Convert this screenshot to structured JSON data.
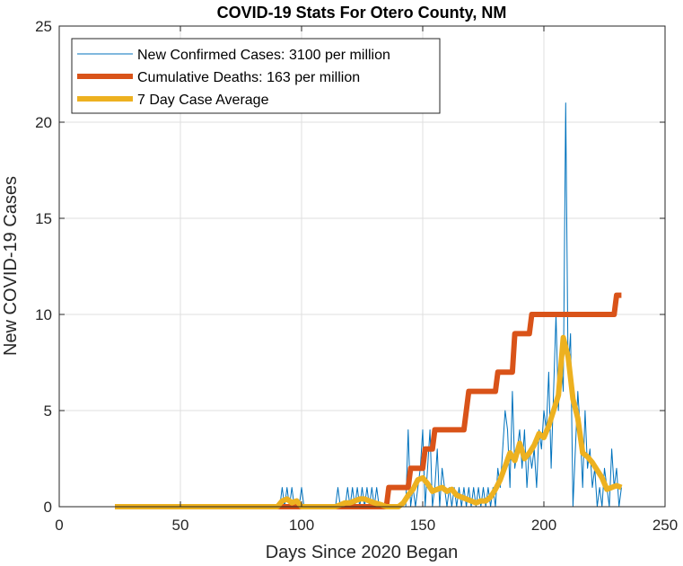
{
  "chart_data": {
    "type": "line",
    "title": "COVID-19 Stats For Otero County, NM",
    "xlabel": "Days Since 2020 Began",
    "ylabel": "New COVID-19 Cases",
    "xlim": [
      0,
      250
    ],
    "ylim": [
      0,
      25
    ],
    "xticks": [
      0,
      50,
      100,
      150,
      200,
      250
    ],
    "yticks": [
      0,
      5,
      10,
      15,
      20,
      25
    ],
    "grid": true,
    "legend_position": "top-left",
    "series": [
      {
        "name": "New Confirmed Cases: 3100 per million",
        "color": "#0072BD",
        "width": "thin",
        "points": [
          [
            23,
            0
          ],
          [
            91,
            0
          ],
          [
            92,
            1
          ],
          [
            93,
            0
          ],
          [
            94,
            1
          ],
          [
            95,
            0
          ],
          [
            96,
            1
          ],
          [
            97,
            0
          ],
          [
            99,
            0
          ],
          [
            100,
            1
          ],
          [
            101,
            0
          ],
          [
            114,
            0
          ],
          [
            115,
            1
          ],
          [
            116,
            0
          ],
          [
            118,
            0
          ],
          [
            119,
            1
          ],
          [
            120,
            0
          ],
          [
            121,
            1
          ],
          [
            122,
            0
          ],
          [
            123,
            1
          ],
          [
            124,
            0
          ],
          [
            125,
            1
          ],
          [
            126,
            0
          ],
          [
            127,
            1
          ],
          [
            128,
            0
          ],
          [
            129,
            1
          ],
          [
            130,
            0
          ],
          [
            131,
            1
          ],
          [
            132,
            0
          ],
          [
            143,
            0
          ],
          [
            144,
            4
          ],
          [
            145,
            0
          ],
          [
            146,
            1
          ],
          [
            147,
            0
          ],
          [
            148,
            1
          ],
          [
            149,
            2
          ],
          [
            150,
            4
          ],
          [
            151,
            0
          ],
          [
            152,
            2
          ],
          [
            153,
            4
          ],
          [
            154,
            0
          ],
          [
            155,
            1
          ],
          [
            156,
            3
          ],
          [
            157,
            0
          ],
          [
            158,
            2
          ],
          [
            159,
            1
          ],
          [
            160,
            0
          ],
          [
            161,
            1
          ],
          [
            162,
            0
          ],
          [
            163,
            1
          ],
          [
            164,
            0
          ],
          [
            165,
            1
          ],
          [
            166,
            0
          ],
          [
            167,
            1
          ],
          [
            168,
            0
          ],
          [
            169,
            1
          ],
          [
            170,
            0
          ],
          [
            171,
            1
          ],
          [
            172,
            0
          ],
          [
            173,
            1
          ],
          [
            174,
            0
          ],
          [
            175,
            1
          ],
          [
            176,
            0
          ],
          [
            177,
            1
          ],
          [
            178,
            0
          ],
          [
            179,
            1
          ],
          [
            180,
            0
          ],
          [
            181,
            2
          ],
          [
            182,
            1
          ],
          [
            183,
            3
          ],
          [
            184,
            5
          ],
          [
            185,
            4
          ],
          [
            186,
            1
          ],
          [
            187,
            6
          ],
          [
            188,
            2
          ],
          [
            189,
            3
          ],
          [
            190,
            4
          ],
          [
            191,
            2
          ],
          [
            192,
            4
          ],
          [
            193,
            1
          ],
          [
            194,
            3
          ],
          [
            195,
            2
          ],
          [
            196,
            3
          ],
          [
            197,
            1
          ],
          [
            198,
            4
          ],
          [
            199,
            3
          ],
          [
            200,
            5
          ],
          [
            201,
            4
          ],
          [
            202,
            7
          ],
          [
            203,
            2
          ],
          [
            204,
            6
          ],
          [
            205,
            10
          ],
          [
            206,
            5
          ],
          [
            207,
            8
          ],
          [
            208,
            6
          ],
          [
            209,
            21
          ],
          [
            210,
            7
          ],
          [
            211,
            9
          ],
          [
            212,
            0
          ],
          [
            213,
            3
          ],
          [
            214,
            6
          ],
          [
            215,
            4
          ],
          [
            216,
            1
          ],
          [
            217,
            5
          ],
          [
            218,
            2
          ],
          [
            219,
            3
          ],
          [
            220,
            1
          ],
          [
            221,
            2
          ],
          [
            222,
            0
          ],
          [
            223,
            1
          ],
          [
            224,
            0
          ],
          [
            225,
            2
          ],
          [
            226,
            1
          ],
          [
            227,
            0
          ],
          [
            228,
            3
          ],
          [
            229,
            1
          ],
          [
            230,
            2
          ],
          [
            231,
            0
          ],
          [
            232,
            1
          ]
        ]
      },
      {
        "name": "Cumulative Deaths: 163 per million",
        "color": "#D95319",
        "width": "thick",
        "points": [
          [
            23,
            0
          ],
          [
            135,
            0
          ],
          [
            136,
            1
          ],
          [
            144,
            1
          ],
          [
            145,
            2
          ],
          [
            150,
            2
          ],
          [
            151,
            3
          ],
          [
            154,
            3
          ],
          [
            155,
            4
          ],
          [
            167,
            4
          ],
          [
            168,
            5
          ],
          [
            169,
            6
          ],
          [
            180,
            6
          ],
          [
            181,
            7
          ],
          [
            187,
            7
          ],
          [
            188,
            9
          ],
          [
            194,
            9
          ],
          [
            195,
            10
          ],
          [
            229,
            10
          ],
          [
            230,
            11
          ],
          [
            232,
            11
          ]
        ]
      },
      {
        "name": "7 Day Case Average",
        "color": "#EDB120",
        "width": "thick",
        "points": [
          [
            23,
            0
          ],
          [
            90,
            0
          ],
          [
            92,
            0.3
          ],
          [
            94,
            0.4
          ],
          [
            96,
            0.2
          ],
          [
            98,
            0.3
          ],
          [
            100,
            0
          ],
          [
            101,
            0
          ],
          [
            114,
            0
          ],
          [
            116,
            0.1
          ],
          [
            118,
            0.2
          ],
          [
            120,
            0.2
          ],
          [
            122,
            0.3
          ],
          [
            124,
            0.4
          ],
          [
            126,
            0.4
          ],
          [
            128,
            0.3
          ],
          [
            130,
            0.2
          ],
          [
            133,
            0.1
          ],
          [
            135,
            0
          ],
          [
            140,
            0
          ],
          [
            142,
            0.2
          ],
          [
            144,
            0.6
          ],
          [
            146,
            0.9
          ],
          [
            148,
            1.4
          ],
          [
            150,
            1.5
          ],
          [
            152,
            1.2
          ],
          [
            154,
            0.8
          ],
          [
            156,
            0.9
          ],
          [
            158,
            1.0
          ],
          [
            160,
            0.8
          ],
          [
            162,
            0.9
          ],
          [
            164,
            0.6
          ],
          [
            166,
            0.5
          ],
          [
            168,
            0.4
          ],
          [
            170,
            0.3
          ],
          [
            172,
            0.2
          ],
          [
            174,
            0.3
          ],
          [
            176,
            0.3
          ],
          [
            178,
            0.5
          ],
          [
            180,
            0.9
          ],
          [
            182,
            1.4
          ],
          [
            184,
            2.1
          ],
          [
            186,
            2.8
          ],
          [
            188,
            2.4
          ],
          [
            190,
            3.3
          ],
          [
            192,
            2.5
          ],
          [
            194,
            2.8
          ],
          [
            196,
            3.2
          ],
          [
            198,
            3.8
          ],
          [
            200,
            3.6
          ],
          [
            202,
            4.2
          ],
          [
            204,
            5.0
          ],
          [
            206,
            5.8
          ],
          [
            208,
            8.8
          ],
          [
            210,
            7.8
          ],
          [
            212,
            5.6
          ],
          [
            214,
            4.6
          ],
          [
            216,
            2.8
          ],
          [
            218,
            2.6
          ],
          [
            220,
            2.3
          ],
          [
            222,
            1.9
          ],
          [
            224,
            1.5
          ],
          [
            226,
            0.9
          ],
          [
            228,
            1.0
          ],
          [
            230,
            1.1
          ],
          [
            232,
            1.0
          ]
        ]
      }
    ]
  }
}
